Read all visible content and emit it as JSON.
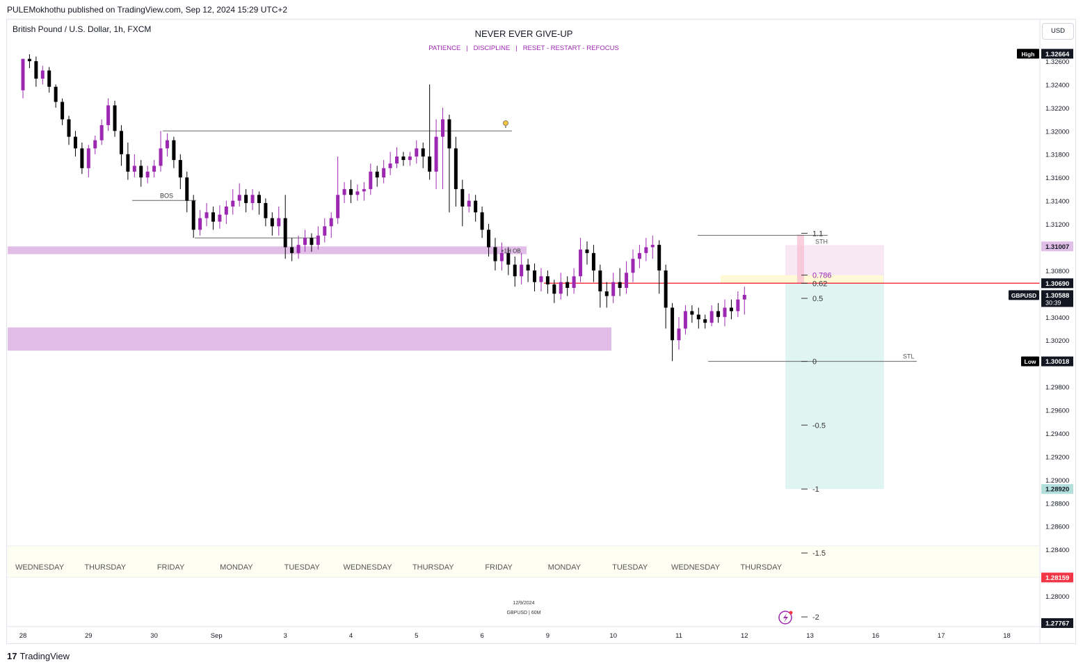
{
  "header": {
    "published": "PULEMokhothu published on TradingView.com, Sep 12, 2024 15:29 UTC+2",
    "symbol": "British Pound / U.S. Dollar, 1h, FXCM",
    "headline": "NEVER EVER GIVE-UP",
    "subline": "PATIENCE   |   DISCIPLINE   |   RESET - RESTART - REFOCUS",
    "currency": "USD"
  },
  "footer": {
    "logo_text": "TradingView",
    "logo_mark": "17"
  },
  "watermark": {
    "date": "12/9/2024",
    "symbol": "GBPUSD | 60M"
  },
  "colors": {
    "bull": "#9c27b0",
    "bear": "#000000",
    "ob_zone": "#e1bee7",
    "red_line": "#f23645",
    "target_zone": "#e0f4f1",
    "stop_zone": "#f7e6f5",
    "fib_zone": "#fff9d6",
    "weekday_band": "#fffef2"
  },
  "chart_data": {
    "type": "candlestick",
    "title": "British Pound / U.S. Dollar, 1h, FXCM",
    "ylim": [
      1.2769,
      1.3276
    ],
    "y_ticks": [
      "1.32600",
      "1.32400",
      "1.32200",
      "1.32000",
      "1.31800",
      "1.31600",
      "1.31400",
      "1.31200",
      "1.30800",
      "1.30400",
      "1.30200",
      "1.29800",
      "1.29600",
      "1.29400",
      "1.29200",
      "1.29000",
      "1.28800",
      "1.28600",
      "1.28400",
      "1.28000"
    ],
    "x_ticks": [
      {
        "label": "28",
        "pos": 0
      },
      {
        "label": "29",
        "pos": 1
      },
      {
        "label": "30",
        "pos": 2
      },
      {
        "label": "Sep",
        "pos": 2.95
      },
      {
        "label": "3",
        "pos": 4
      },
      {
        "label": "4",
        "pos": 5
      },
      {
        "label": "5",
        "pos": 6
      },
      {
        "label": "6",
        "pos": 7
      },
      {
        "label": "9",
        "pos": 8
      },
      {
        "label": "10",
        "pos": 9
      },
      {
        "label": "11",
        "pos": 10
      },
      {
        "label": "12",
        "pos": 11
      },
      {
        "label": "13",
        "pos": 12
      },
      {
        "label": "16",
        "pos": 13
      },
      {
        "label": "17",
        "pos": 14
      },
      {
        "label": "18",
        "pos": 15
      }
    ],
    "weekdays": [
      "WEDNESDAY",
      "THURSDAY",
      "FRIDAY",
      "MONDAY",
      "TUESDAY",
      "WEDNESDAY",
      "THURSDAY",
      "FRIDAY",
      "MONDAY",
      "TUESDAY",
      "WEDNESDAY",
      "THURSDAY"
    ],
    "price_tags": [
      {
        "label": "High",
        "value": "1.32664",
        "style": "dark"
      },
      {
        "label": "",
        "value": "1.31007",
        "style": "pink"
      },
      {
        "label": "",
        "value": "1.30690",
        "style": "darkrow"
      },
      {
        "label": "GBPUSD",
        "value": "1.30588",
        "extra": "30:39",
        "style": "dark"
      },
      {
        "label": "Low",
        "value": "1.30018",
        "style": "dark"
      },
      {
        "label": "",
        "value": "1.28920",
        "style": "teal"
      },
      {
        "label": "",
        "value": "1.28159",
        "style": "red"
      },
      {
        "label": "",
        "value": "1.27767",
        "style": "darkrow"
      }
    ],
    "price_tag_levels": [
      1.32664,
      1.31007,
      1.3069,
      1.30588,
      1.30018,
      1.2892,
      1.28159,
      1.27767
    ],
    "fib_levels": [
      {
        "label": "1.1",
        "price": 1.3112
      },
      {
        "label": "0.786",
        "price": 1.3076
      },
      {
        "label": "0.62",
        "price": 1.3069
      },
      {
        "label": "0.5",
        "price": 1.3056
      },
      {
        "label": "0",
        "price": 1.30018
      },
      {
        "label": "-0.5",
        "price": 1.2947
      },
      {
        "label": "-1",
        "price": 1.2892
      },
      {
        "label": "-1.5",
        "price": 1.2837
      },
      {
        "label": "-2",
        "price": 1.2782
      }
    ],
    "annotations": {
      "bos": "BOS",
      "ob": "+1H OB",
      "sth": "STH",
      "stl": "STL",
      "resistance_price": 1.3069,
      "ob_zone": [
        1.31007,
        1.3094
      ],
      "lower_zone": [
        1.3031,
        1.3011
      ],
      "bos_level": 1.3145,
      "swing_high_level": 1.32,
      "low_line": 1.3108
    },
    "candles": [
      [
        0.0,
        1.3235,
        1.3262,
        1.3262,
        1.3228
      ],
      [
        0.1,
        1.3262,
        1.326,
        1.3266,
        1.3254
      ],
      [
        0.2,
        1.326,
        1.3245,
        1.3264,
        1.3238
      ],
      [
        0.3,
        1.3245,
        1.3252,
        1.3256,
        1.324
      ],
      [
        0.4,
        1.3252,
        1.3238,
        1.3255,
        1.3233
      ],
      [
        0.5,
        1.3238,
        1.3225,
        1.324,
        1.322
      ],
      [
        0.6,
        1.3225,
        1.321,
        1.3228,
        1.3205
      ],
      [
        0.7,
        1.321,
        1.3195,
        1.3213,
        1.3188
      ],
      [
        0.8,
        1.3195,
        1.3185,
        1.32,
        1.3178
      ],
      [
        0.9,
        1.3185,
        1.3168,
        1.319,
        1.3163
      ],
      [
        1.0,
        1.3168,
        1.3185,
        1.3188,
        1.316
      ],
      [
        1.1,
        1.3185,
        1.3192,
        1.3196,
        1.318
      ],
      [
        1.2,
        1.3192,
        1.3205,
        1.321,
        1.3188
      ],
      [
        1.3,
        1.3205,
        1.3222,
        1.3228,
        1.32
      ],
      [
        1.4,
        1.3222,
        1.32,
        1.3226,
        1.3195
      ],
      [
        1.5,
        1.32,
        1.318,
        1.3205,
        1.317
      ],
      [
        1.6,
        1.318,
        1.3165,
        1.319,
        1.3158
      ],
      [
        1.7,
        1.3165,
        1.317,
        1.318,
        1.316
      ],
      [
        1.8,
        1.317,
        1.316,
        1.3175,
        1.3152
      ],
      [
        1.9,
        1.316,
        1.3165,
        1.317,
        1.3155
      ],
      [
        2.0,
        1.3165,
        1.317,
        1.3175,
        1.316
      ],
      [
        2.1,
        1.317,
        1.3185,
        1.32,
        1.3165
      ],
      [
        2.2,
        1.3185,
        1.3192,
        1.3198,
        1.3178
      ],
      [
        2.3,
        1.3192,
        1.3175,
        1.3195,
        1.3168
      ],
      [
        2.4,
        1.3175,
        1.316,
        1.318,
        1.315
      ],
      [
        2.5,
        1.316,
        1.314,
        1.3165,
        1.313
      ],
      [
        2.6,
        1.314,
        1.3115,
        1.3145,
        1.3108
      ],
      [
        2.7,
        1.3115,
        1.3125,
        1.3132,
        1.311
      ],
      [
        2.8,
        1.3125,
        1.313,
        1.3138,
        1.3118
      ],
      [
        2.9,
        1.313,
        1.3122,
        1.3135,
        1.3115
      ],
      [
        3.0,
        1.3122,
        1.3128,
        1.3136,
        1.3116
      ],
      [
        3.1,
        1.3128,
        1.3135,
        1.314,
        1.312
      ],
      [
        3.2,
        1.3135,
        1.314,
        1.315,
        1.3128
      ],
      [
        3.3,
        1.314,
        1.3145,
        1.3155,
        1.3135
      ],
      [
        3.4,
        1.3145,
        1.3138,
        1.315,
        1.313
      ],
      [
        3.5,
        1.3138,
        1.3145,
        1.315,
        1.3132
      ],
      [
        3.6,
        1.3145,
        1.3138,
        1.3148,
        1.3128
      ],
      [
        3.7,
        1.3138,
        1.3125,
        1.3142,
        1.3118
      ],
      [
        3.8,
        1.3125,
        1.3118,
        1.313,
        1.311
      ],
      [
        3.9,
        1.3118,
        1.3125,
        1.3135,
        1.311
      ],
      [
        4.0,
        1.3125,
        1.31,
        1.3145,
        1.309
      ],
      [
        4.1,
        1.31,
        1.3095,
        1.3108,
        1.3088
      ],
      [
        4.2,
        1.3095,
        1.3102,
        1.311,
        1.309
      ],
      [
        4.3,
        1.3102,
        1.3108,
        1.3115,
        1.3096
      ],
      [
        4.4,
        1.3108,
        1.3102,
        1.3112,
        1.3096
      ],
      [
        4.5,
        1.3102,
        1.311,
        1.3118,
        1.3098
      ],
      [
        4.6,
        1.311,
        1.3118,
        1.3125,
        1.3104
      ],
      [
        4.7,
        1.3118,
        1.3125,
        1.313,
        1.3108
      ],
      [
        4.8,
        1.3125,
        1.3145,
        1.3178,
        1.312
      ],
      [
        4.9,
        1.3145,
        1.315,
        1.3156,
        1.3138
      ],
      [
        5.0,
        1.315,
        1.3145,
        1.3158,
        1.3138
      ],
      [
        5.1,
        1.3145,
        1.3148,
        1.3154,
        1.314
      ],
      [
        5.2,
        1.3148,
        1.315,
        1.3156,
        1.314
      ],
      [
        5.3,
        1.315,
        1.3165,
        1.3172,
        1.3145
      ],
      [
        5.4,
        1.3165,
        1.316,
        1.317,
        1.3152
      ],
      [
        5.5,
        1.316,
        1.3168,
        1.3175,
        1.3155
      ],
      [
        5.6,
        1.3168,
        1.3172,
        1.3182,
        1.3162
      ],
      [
        5.7,
        1.3172,
        1.3178,
        1.3186,
        1.3168
      ],
      [
        5.8,
        1.3178,
        1.3175,
        1.3182,
        1.317
      ],
      [
        5.9,
        1.3175,
        1.3178,
        1.3182,
        1.317
      ],
      [
        6.0,
        1.3178,
        1.3185,
        1.3192,
        1.3172
      ],
      [
        6.1,
        1.3185,
        1.3178,
        1.319,
        1.3168
      ],
      [
        6.2,
        1.3178,
        1.3165,
        1.324,
        1.3158
      ],
      [
        6.3,
        1.3165,
        1.3195,
        1.321,
        1.315
      ],
      [
        6.4,
        1.3195,
        1.321,
        1.322,
        1.315
      ],
      [
        6.5,
        1.321,
        1.3185,
        1.3214,
        1.313
      ],
      [
        6.6,
        1.3185,
        1.315,
        1.3195,
        1.3135
      ],
      [
        6.7,
        1.315,
        1.3135,
        1.3158,
        1.3118
      ],
      [
        6.8,
        1.3135,
        1.314,
        1.3146,
        1.313
      ],
      [
        6.9,
        1.314,
        1.313,
        1.3145,
        1.3122
      ],
      [
        7.0,
        1.313,
        1.3115,
        1.3135,
        1.3108
      ],
      [
        7.1,
        1.3115,
        1.31,
        1.312,
        1.3092
      ],
      [
        7.2,
        1.31,
        1.3088,
        1.3108,
        1.308
      ],
      [
        7.3,
        1.3088,
        1.3095,
        1.3104,
        1.308
      ],
      [
        7.4,
        1.3095,
        1.3085,
        1.31,
        1.3076
      ],
      [
        7.5,
        1.3085,
        1.3075,
        1.3092,
        1.3066
      ],
      [
        7.6,
        1.3075,
        1.3085,
        1.3095,
        1.3068
      ],
      [
        7.7,
        1.3085,
        1.308,
        1.309,
        1.307
      ],
      [
        7.8,
        1.308,
        1.307,
        1.3086,
        1.3062
      ],
      [
        7.9,
        1.307,
        1.3075,
        1.3082,
        1.3062
      ],
      [
        8.0,
        1.3075,
        1.3068,
        1.308,
        1.306
      ],
      [
        8.1,
        1.3068,
        1.306,
        1.3072,
        1.3052
      ],
      [
        8.2,
        1.306,
        1.307,
        1.3078,
        1.3055
      ],
      [
        8.3,
        1.307,
        1.3065,
        1.3075,
        1.3058
      ],
      [
        8.4,
        1.3065,
        1.3075,
        1.3082,
        1.306
      ],
      [
        8.5,
        1.3075,
        1.3098,
        1.3108,
        1.307
      ],
      [
        8.6,
        1.3098,
        1.3095,
        1.3105,
        1.3085
      ],
      [
        8.7,
        1.3095,
        1.308,
        1.3102,
        1.307
      ],
      [
        8.8,
        1.308,
        1.3062,
        1.3085,
        1.3048
      ],
      [
        8.9,
        1.3062,
        1.3058,
        1.307,
        1.3048
      ],
      [
        9.0,
        1.3058,
        1.307,
        1.3078,
        1.3052
      ],
      [
        9.1,
        1.307,
        1.3065,
        1.3082,
        1.3058
      ],
      [
        9.2,
        1.3065,
        1.3078,
        1.3088,
        1.306
      ],
      [
        9.3,
        1.3078,
        1.309,
        1.3098,
        1.307
      ],
      [
        9.4,
        1.309,
        1.3095,
        1.3102,
        1.3082
      ],
      [
        9.5,
        1.3095,
        1.31,
        1.3108,
        1.3088
      ],
      [
        9.6,
        1.31,
        1.3102,
        1.311,
        1.309
      ],
      [
        9.7,
        1.3102,
        1.308,
        1.3106,
        1.306
      ],
      [
        9.8,
        1.308,
        1.3048,
        1.3085,
        1.303
      ],
      [
        9.9,
        1.3048,
        1.302,
        1.3052,
        1.3002
      ],
      [
        10.0,
        1.302,
        1.303,
        1.304,
        1.3012
      ],
      [
        10.1,
        1.303,
        1.3045,
        1.305,
        1.3025
      ],
      [
        10.2,
        1.3045,
        1.3042,
        1.305,
        1.3035
      ],
      [
        10.3,
        1.3042,
        1.3038,
        1.3048,
        1.303
      ],
      [
        10.4,
        1.3038,
        1.3035,
        1.3042,
        1.303
      ],
      [
        10.5,
        1.3035,
        1.3045,
        1.305,
        1.3032
      ],
      [
        10.6,
        1.3045,
        1.304,
        1.3052,
        1.3035
      ],
      [
        10.7,
        1.304,
        1.3048,
        1.3055,
        1.3032
      ],
      [
        10.8,
        1.3048,
        1.3045,
        1.3055,
        1.3038
      ],
      [
        10.9,
        1.3045,
        1.3055,
        1.3062,
        1.304
      ],
      [
        11.0,
        1.3055,
        1.3059,
        1.3066,
        1.3042
      ]
    ]
  }
}
